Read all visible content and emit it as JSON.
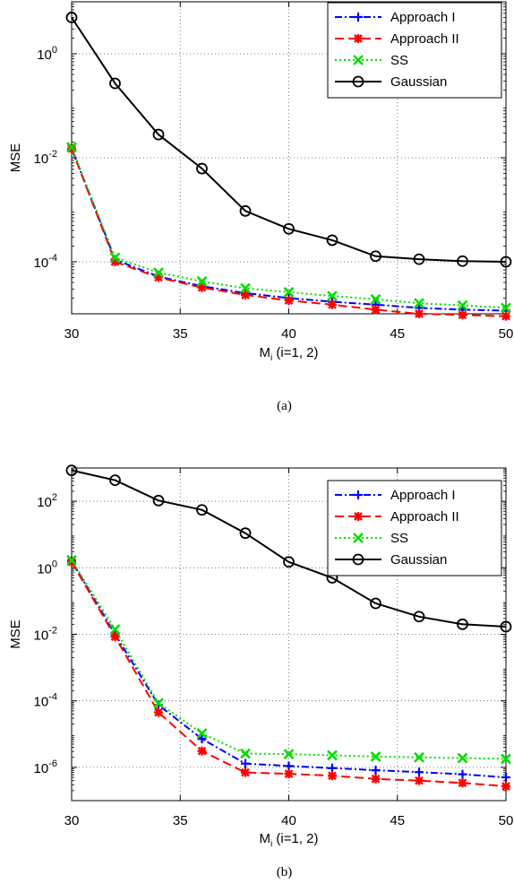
{
  "chart_data": [
    {
      "type": "line",
      "caption": "(a)",
      "xlabel_main": "M",
      "xlabel_sub": "i",
      "xlabel_rest": " (i=1, 2)",
      "ylabel": "MSE",
      "yscale": "log",
      "xlim": [
        30,
        50
      ],
      "ylim_exp": [
        -5,
        1
      ],
      "grid": true,
      "legend_position": "top-right",
      "x_ticks": [
        "30",
        "35",
        "40",
        "45",
        "50"
      ],
      "x_tick_values": [
        30,
        35,
        40,
        45,
        50
      ],
      "y_ticks": [
        {
          "base": "10",
          "exp": "0",
          "value": 1
        },
        {
          "base": "10",
          "exp": "-2",
          "value": 0.01
        },
        {
          "base": "10",
          "exp": "-4",
          "value": 0.0001
        }
      ],
      "x": [
        30,
        32,
        34,
        36,
        38,
        40,
        42,
        44,
        46,
        48,
        50
      ],
      "series": [
        {
          "name": "Approach I",
          "color": "#0000ff",
          "dash": "8,3,2,3",
          "marker": "plus",
          "values": [
            0.015,
            0.00011,
            5.2e-05,
            3.4e-05,
            2.5e-05,
            2e-05,
            1.7e-05,
            1.5e-05,
            1.3e-05,
            1.2e-05,
            1.15e-05
          ]
        },
        {
          "name": "Approach II",
          "color": "#ff0000",
          "dash": "10,5",
          "marker": "asterisk",
          "values": [
            0.015,
            0.0001,
            5e-05,
            3.2e-05,
            2.3e-05,
            1.8e-05,
            1.5e-05,
            1.2e-05,
            1e-05,
            9.5e-06,
            9e-06
          ]
        },
        {
          "name": "SS",
          "color": "#00dd00",
          "dash": "2,3",
          "marker": "x",
          "values": [
            0.016,
            0.00012,
            6.2e-05,
            4.2e-05,
            3.1e-05,
            2.6e-05,
            2.2e-05,
            1.9e-05,
            1.6e-05,
            1.45e-05,
            1.3e-05
          ]
        },
        {
          "name": "Gaussian",
          "color": "#000000",
          "dash": "",
          "marker": "circle",
          "values": [
            5,
            0.27,
            0.028,
            0.0062,
            0.00095,
            0.00043,
            0.00026,
            0.000128,
            0.000112,
            0.000103,
            0.0001
          ]
        }
      ]
    },
    {
      "type": "line",
      "caption": "(b)",
      "xlabel_main": "M",
      "xlabel_sub": "i",
      "xlabel_rest": " (i=1, 2)",
      "ylabel": "MSE",
      "yscale": "log",
      "xlim": [
        30,
        50
      ],
      "ylim_exp": [
        -7,
        3
      ],
      "grid": true,
      "legend_position": "top-right",
      "x_ticks": [
        "30",
        "35",
        "40",
        "45",
        "50"
      ],
      "x_tick_values": [
        30,
        35,
        40,
        45,
        50
      ],
      "y_ticks": [
        {
          "base": "10",
          "exp": "2",
          "value": 100
        },
        {
          "base": "10",
          "exp": "0",
          "value": 1
        },
        {
          "base": "10",
          "exp": "-2",
          "value": 0.01
        },
        {
          "base": "10",
          "exp": "-4",
          "value": 0.0001
        },
        {
          "base": "10",
          "exp": "-6",
          "value": 1e-06
        }
      ],
      "x": [
        30,
        32,
        34,
        36,
        38,
        40,
        42,
        44,
        46,
        48,
        50
      ],
      "series": [
        {
          "name": "Approach I",
          "color": "#0000ff",
          "dash": "8,3,2,3",
          "marker": "plus",
          "values": [
            1.6,
            0.01,
            7.5e-05,
            7.2e-06,
            1.3e-06,
            1.1e-06,
            9.5e-07,
            8.2e-07,
            7.2e-07,
            6.2e-07,
            5e-07
          ]
        },
        {
          "name": "Approach II",
          "color": "#ff0000",
          "dash": "10,5",
          "marker": "asterisk",
          "values": [
            1.5,
            0.0085,
            4.5e-05,
            3.1e-06,
            7e-07,
            6.4e-07,
            5.6e-07,
            4.5e-07,
            4e-07,
            3.4e-07,
            2.7e-07
          ]
        },
        {
          "name": "SS",
          "color": "#00dd00",
          "dash": "2,3",
          "marker": "x",
          "values": [
            1.7,
            0.014,
            8.5e-05,
            1.05e-05,
            2.6e-06,
            2.5e-06,
            2.3e-06,
            2.1e-06,
            2e-06,
            1.9e-06,
            1.8e-06
          ]
        },
        {
          "name": "Gaussian",
          "color": "#000000",
          "dash": "",
          "marker": "circle",
          "values": [
            850,
            430,
            105,
            55,
            11,
            1.5,
            0.5,
            0.085,
            0.034,
            0.02,
            0.017
          ]
        }
      ]
    }
  ]
}
